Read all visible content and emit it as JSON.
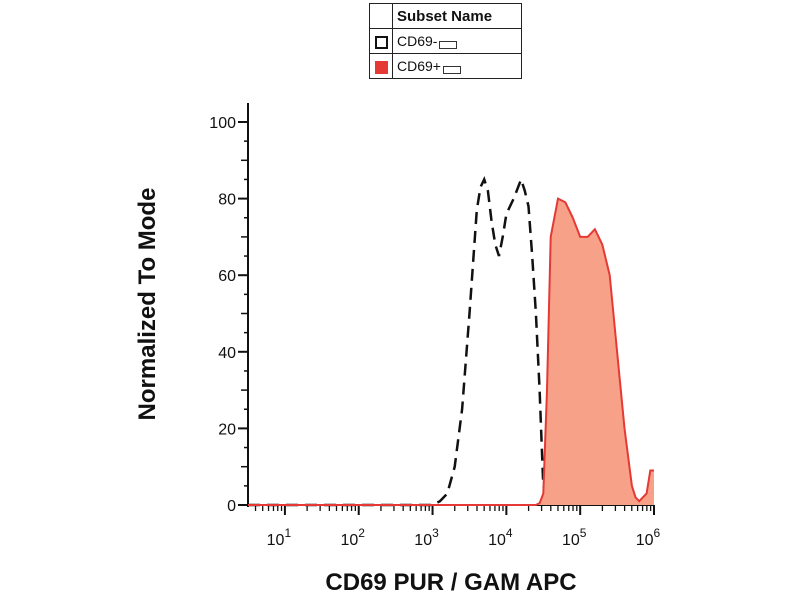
{
  "legend": {
    "header": "Subset Name",
    "entries": [
      {
        "label": "CD69-",
        "style": "open",
        "color": "#111111"
      },
      {
        "label": "CD69+",
        "style": "filled",
        "color": "#e53935"
      }
    ]
  },
  "chart_data": {
    "type": "area",
    "title": "",
    "xlabel": "CD69 PUR / GAM APC",
    "ylabel": "Normalized To Mode",
    "xscale": "log",
    "xlim_log10": [
      0.5,
      6.0
    ],
    "ylim": [
      0,
      100
    ],
    "yticks": [
      0,
      20,
      40,
      60,
      80,
      100
    ],
    "xticks": [
      {
        "exp": 1,
        "base": "10",
        "sup": "1"
      },
      {
        "exp": 2,
        "base": "10",
        "sup": "2"
      },
      {
        "exp": 3,
        "base": "10",
        "sup": "3"
      },
      {
        "exp": 4,
        "base": "10",
        "sup": "4"
      },
      {
        "exp": 5,
        "base": "10",
        "sup": "5"
      },
      {
        "exp": 6,
        "base": "10",
        "sup": "6"
      }
    ],
    "series": [
      {
        "name": "CD69-",
        "style": "dashed",
        "color": "#111111",
        "x_log10": [
          0.5,
          1.5,
          2.5,
          3.0,
          3.1,
          3.2,
          3.3,
          3.4,
          3.5,
          3.6,
          3.65,
          3.7,
          3.75,
          3.8,
          3.85,
          3.9,
          3.95,
          4.0,
          4.1,
          4.2,
          4.25,
          4.3,
          4.35,
          4.4,
          4.45,
          4.48,
          4.5,
          4.55,
          4.6,
          4.65
        ],
        "y": [
          0,
          0,
          0,
          0,
          1,
          3,
          10,
          25,
          50,
          77,
          83,
          85,
          82,
          74,
          68,
          65,
          70,
          76,
          80,
          85,
          82,
          78,
          65,
          50,
          30,
          15,
          5,
          2,
          0.5,
          0
        ]
      },
      {
        "name": "CD69+",
        "style": "filled",
        "color": "#e53935",
        "fill": "#f7a189",
        "x_log10": [
          0.5,
          1.5,
          2.5,
          3.5,
          4.3,
          4.4,
          4.45,
          4.5,
          4.55,
          4.6,
          4.7,
          4.8,
          4.9,
          5.0,
          5.1,
          5.2,
          5.3,
          5.4,
          5.5,
          5.6,
          5.7,
          5.75,
          5.8,
          5.9,
          5.95,
          6.0
        ],
        "y": [
          0,
          0,
          0,
          0,
          0,
          0,
          0.5,
          3,
          30,
          70,
          80,
          79,
          75,
          70,
          70,
          72,
          68,
          60,
          40,
          20,
          5,
          2,
          1,
          3,
          9,
          9
        ]
      }
    ]
  }
}
